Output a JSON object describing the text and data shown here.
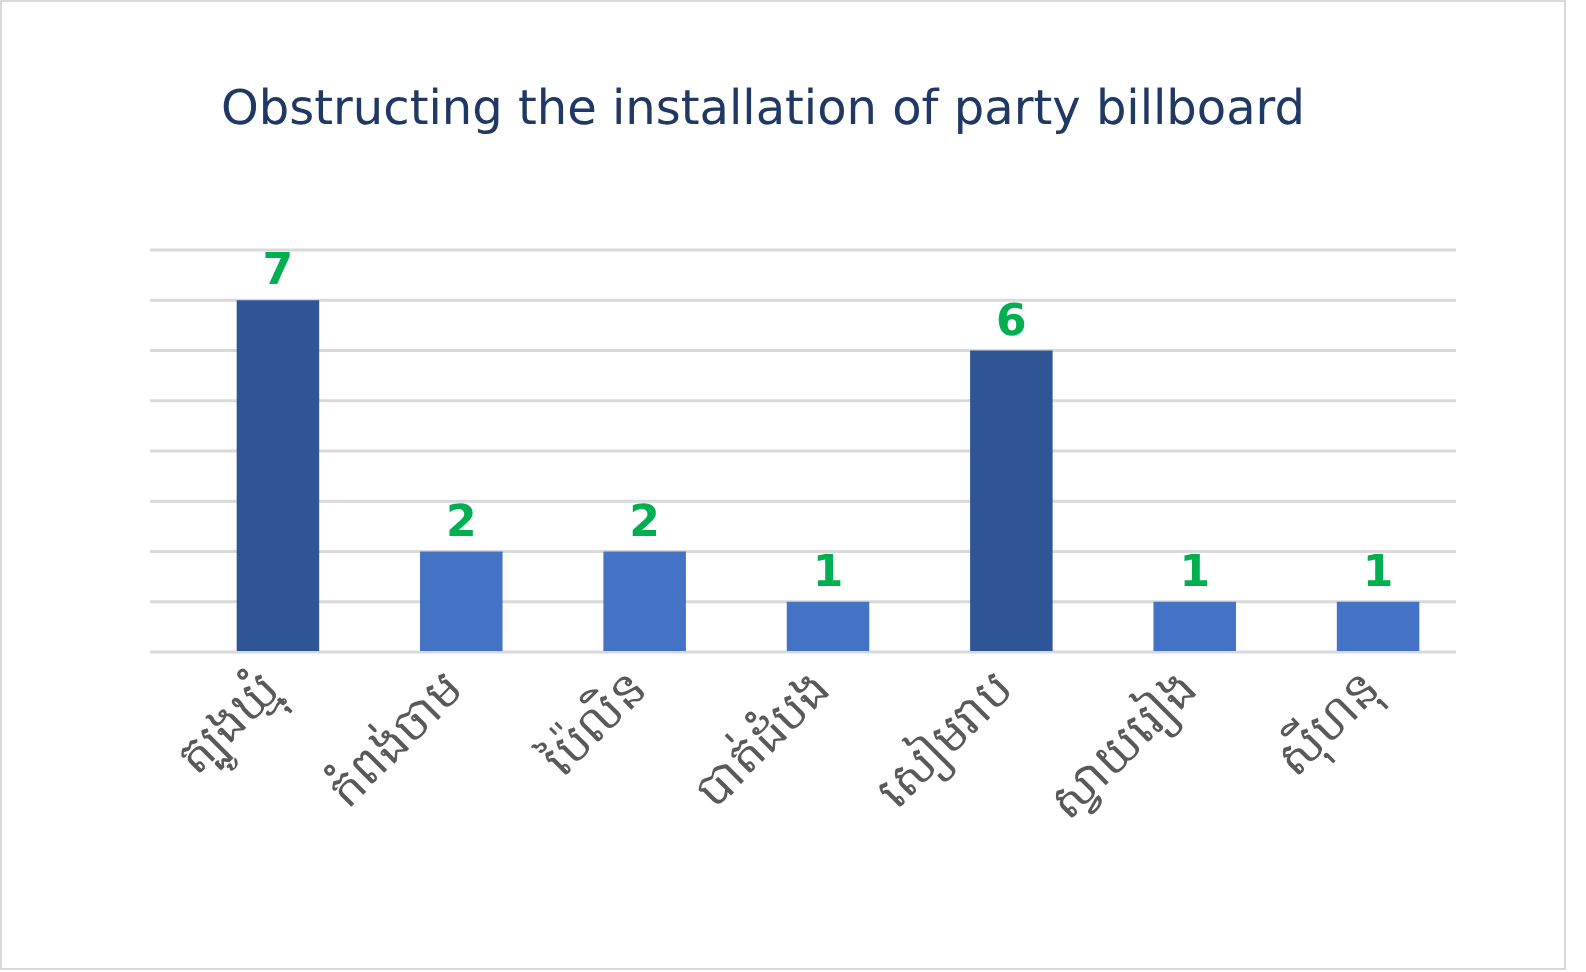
{
  "chart_data": {
    "type": "bar",
    "title": "Obstructing the installation of party billboard",
    "categories": [
      "ត្បូងឃ្មុំ",
      "កំពង់ចាម",
      "ប៉ៃលិន",
      "បាត់ដំបង",
      "សៀមរាប",
      "ស្វាយរៀង",
      "ស៊ីហនុ"
    ],
    "values": [
      7,
      2,
      2,
      1,
      6,
      1,
      1
    ],
    "colors": [
      "#2f5597",
      "#4472c4",
      "#4472c4",
      "#4472c4",
      "#2f5597",
      "#4472c4",
      "#4472c4"
    ],
    "data_labels": true,
    "grid": "y",
    "tick_labels": "x"
  }
}
